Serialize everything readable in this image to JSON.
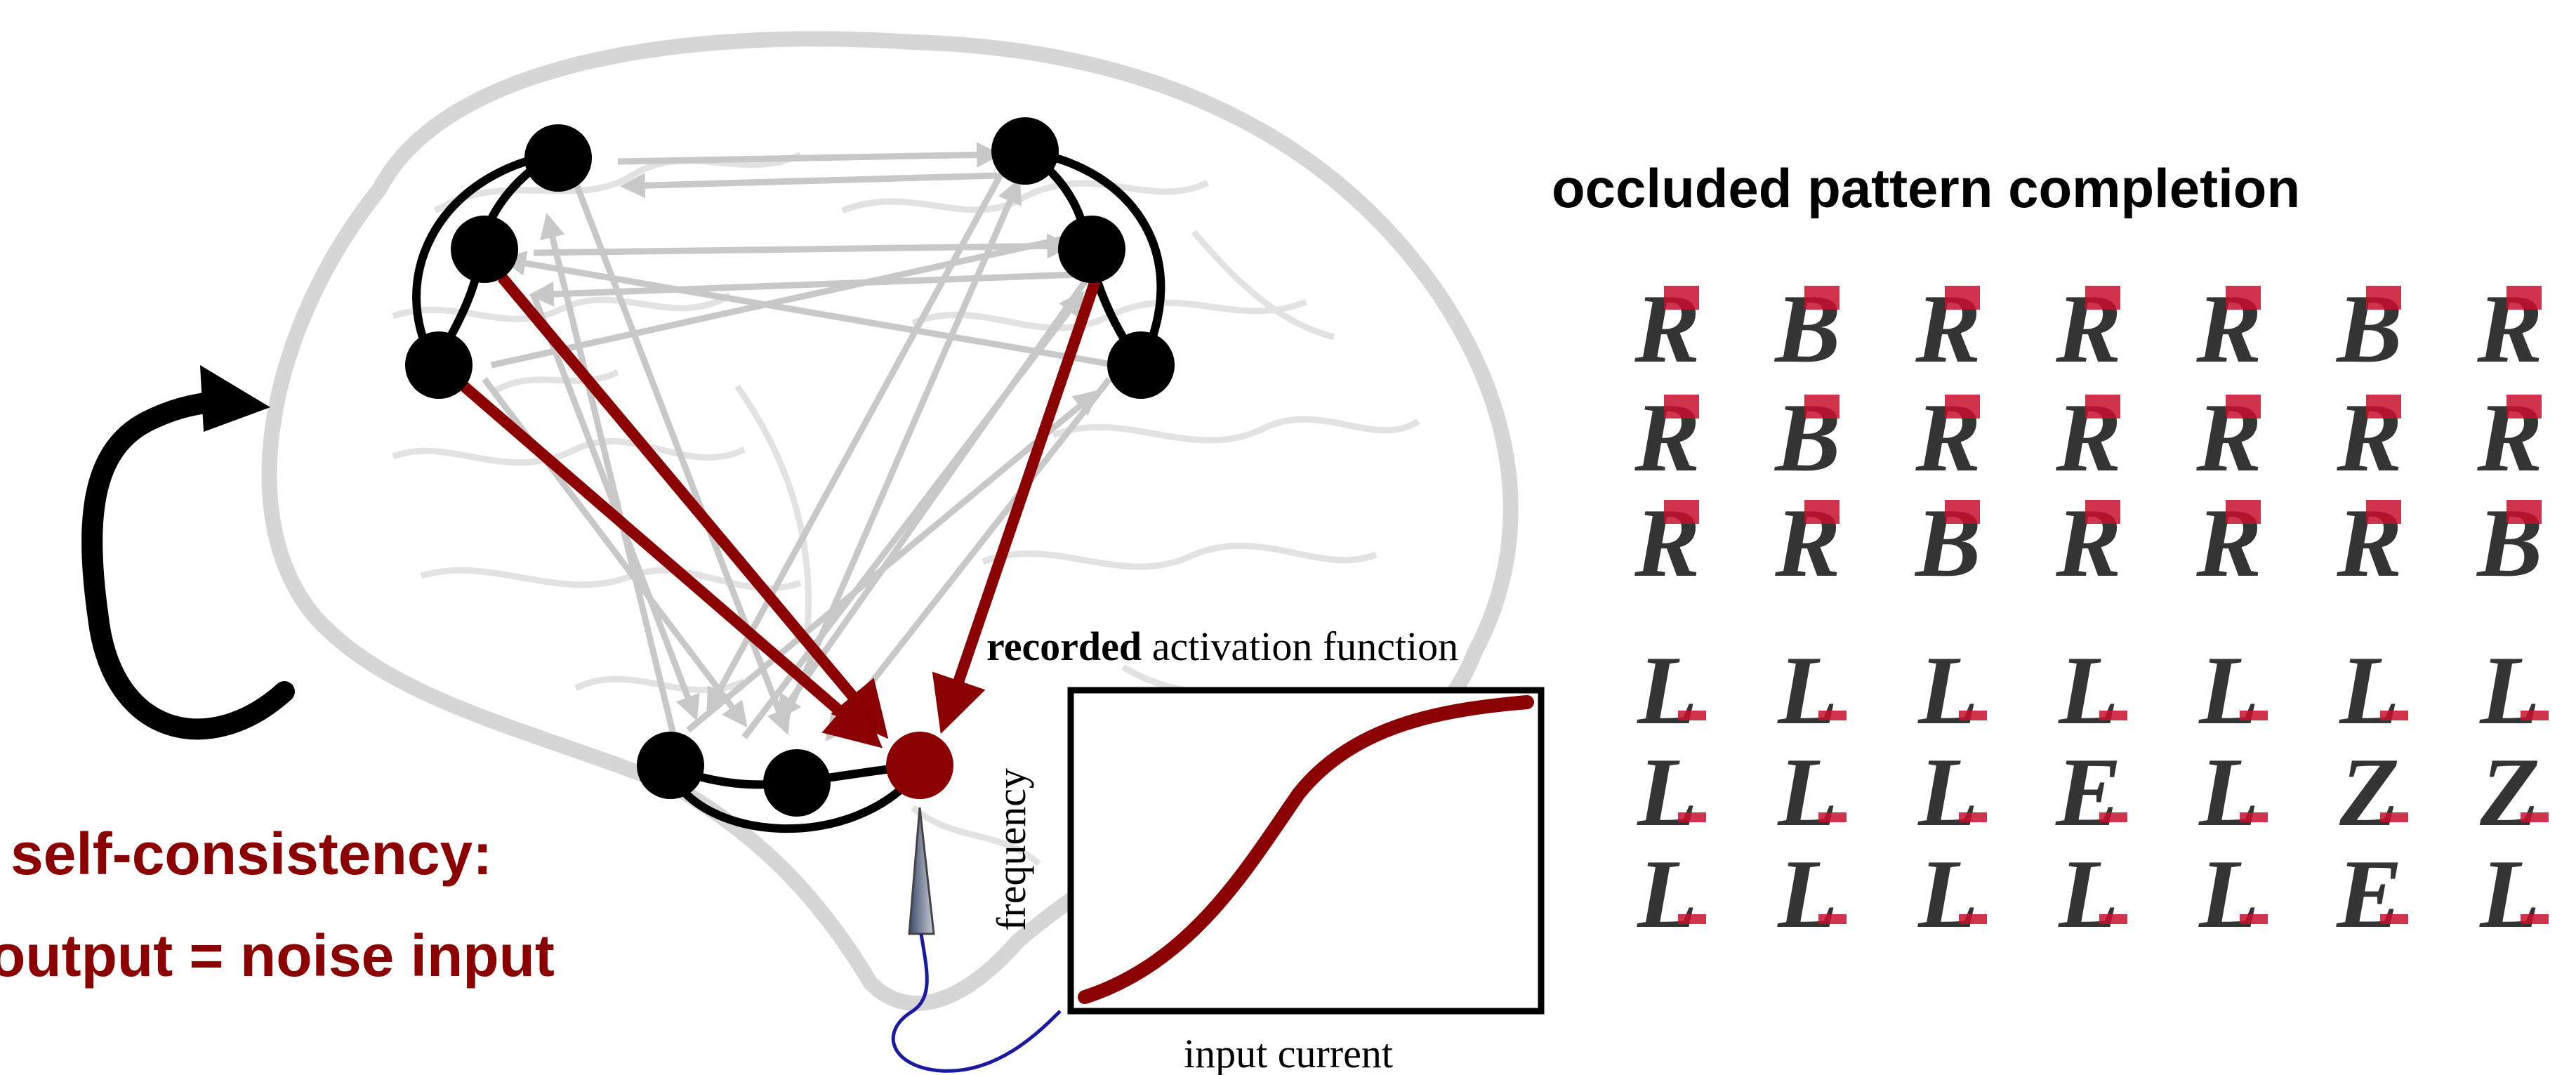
{
  "colors": {
    "accent": "#8b0000",
    "node": "#000000",
    "brain_outline": "#d6d6d6",
    "grey_connection": "#c8c8c8",
    "electrode_wire": "#1a1aa0"
  },
  "network": {
    "node_count": 9,
    "highlighted_node": "recorded-neuron"
  },
  "loop_icon": "circular-arrow-icon",
  "self_consistency": {
    "line1": "self-consistency:",
    "line2": "output  =  noise input"
  },
  "activation_plot": {
    "title_bold": "recorded",
    "title_rest": " activation function",
    "xlabel": "input current",
    "ylabel": "frequency"
  },
  "pattern_completion": {
    "title": "occluded pattern completion",
    "rows": [
      [
        "R",
        "B",
        "R",
        "R",
        "R",
        "B",
        "R"
      ],
      [
        "R",
        "B",
        "R",
        "R",
        "R",
        "R",
        "R"
      ],
      [
        "R",
        "R",
        "B",
        "R",
        "R",
        "R",
        "B"
      ],
      [
        "L",
        "L",
        "L",
        "L",
        "L",
        "L",
        "L"
      ],
      [
        "L",
        "L",
        "L",
        "E",
        "L",
        "Z",
        "Z"
      ],
      [
        "L",
        "L",
        "L",
        "L",
        "L",
        "E",
        "L"
      ]
    ]
  }
}
